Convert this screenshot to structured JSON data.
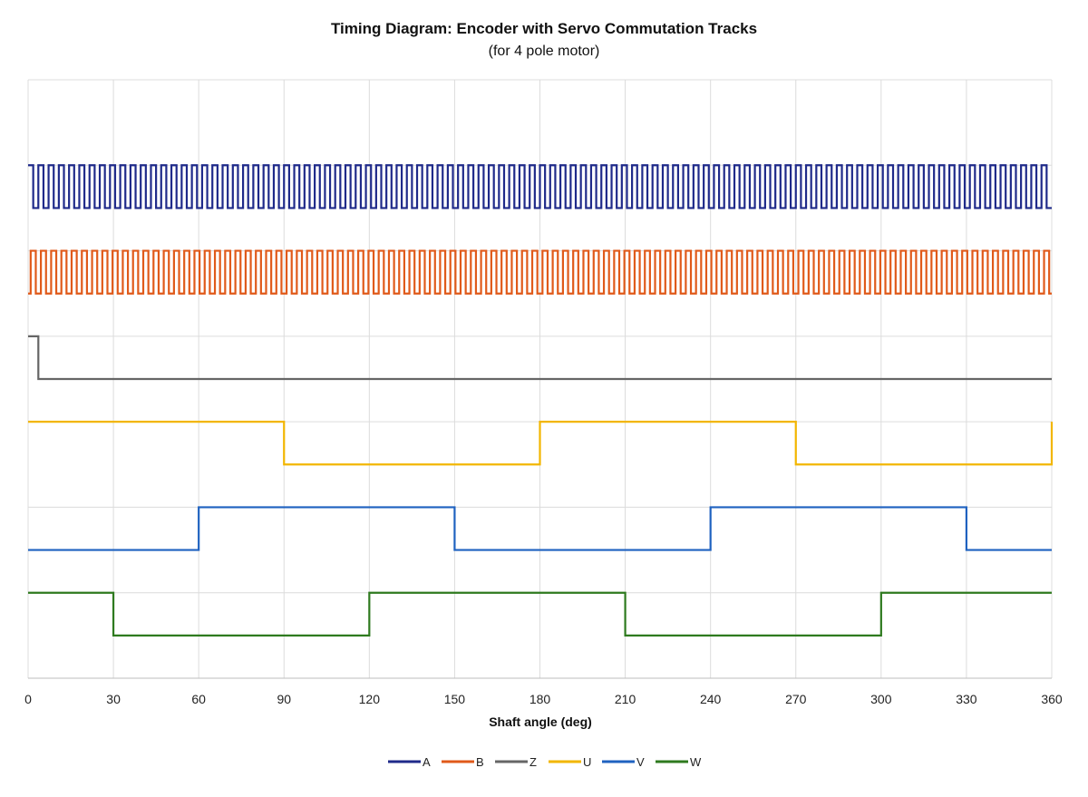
{
  "chart_data": {
    "type": "line",
    "title": "Timing Diagram: Encoder with Servo Commutation Tracks",
    "subtitle": "(for 4 pole motor)",
    "xlabel": "Shaft angle (deg)",
    "ylabel": "",
    "xlim": [
      0,
      360
    ],
    "ylim": [
      0,
      7
    ],
    "x_ticks": [
      "0",
      "30",
      "60",
      "90",
      "120",
      "150",
      "180",
      "210",
      "240",
      "270",
      "300",
      "330",
      "360"
    ],
    "grid": true,
    "legend_position": "bottom",
    "series": [
      {
        "name": "A",
        "color": "#1f2a8a",
        "low": 5.5,
        "high": 6,
        "pulses_per_rev": 100,
        "phase_deg": 0
      },
      {
        "name": "B",
        "color": "#e05a1a",
        "low": 4.5,
        "high": 5,
        "pulses_per_rev": 100,
        "phase_deg": 0.9
      },
      {
        "name": "Z",
        "color": "#666666",
        "low": 3.5,
        "high": 4,
        "steps": [
          [
            0,
            4
          ],
          [
            3.6,
            3.5
          ],
          [
            360,
            3.5
          ]
        ]
      },
      {
        "name": "U",
        "color": "#f2b600",
        "low": 2.5,
        "high": 3,
        "steps": [
          [
            0,
            3
          ],
          [
            90,
            2.5
          ],
          [
            180,
            3
          ],
          [
            270,
            2.5
          ],
          [
            360,
            3
          ]
        ]
      },
      {
        "name": "V",
        "color": "#1f62c0",
        "low": 1.5,
        "high": 2,
        "steps": [
          [
            0,
            1.5
          ],
          [
            60,
            2
          ],
          [
            150,
            1.5
          ],
          [
            240,
            2
          ],
          [
            330,
            1.5
          ],
          [
            360,
            1.5
          ]
        ]
      },
      {
        "name": "W",
        "color": "#2e7a1e",
        "low": 0.5,
        "high": 1,
        "steps": [
          [
            0,
            1
          ],
          [
            30,
            0.5
          ],
          [
            120,
            1
          ],
          [
            210,
            0.5
          ],
          [
            300,
            1
          ],
          [
            360,
            1
          ]
        ]
      }
    ]
  }
}
